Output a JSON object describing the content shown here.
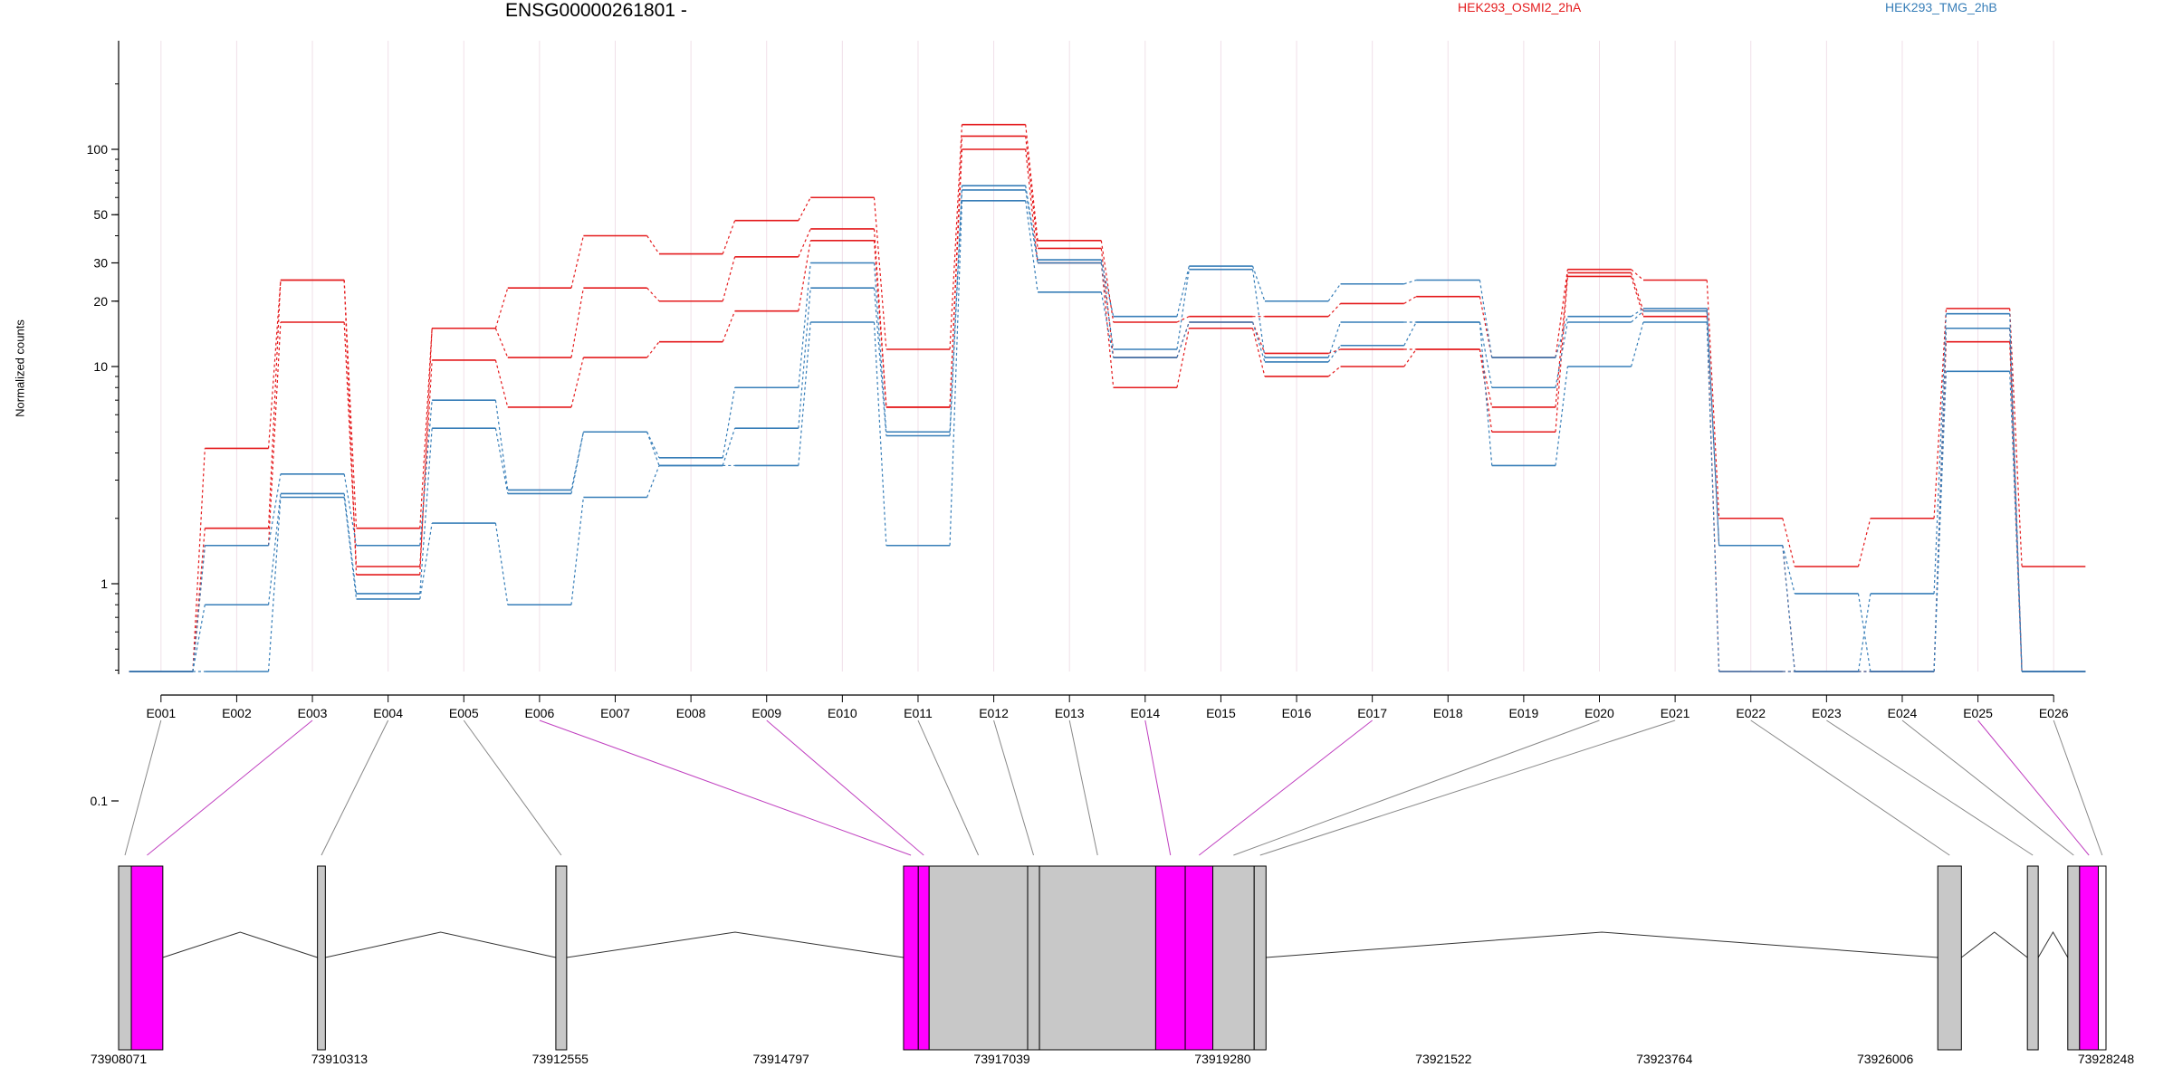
{
  "chart_data": {
    "type": "line",
    "title": "ENSG00000261801 -",
    "ylabel": "Normalized counts",
    "yscale": "log",
    "yticks": [
      0.1,
      1,
      10,
      20,
      30,
      50,
      100
    ],
    "ytick_labels": [
      "0.1",
      "1",
      "10",
      "20",
      "30",
      "50",
      "100"
    ],
    "categories": [
      "E001",
      "E002",
      "E003",
      "E004",
      "E005",
      "E006",
      "E007",
      "E008",
      "E009",
      "E010",
      "E011",
      "E012",
      "E013",
      "E014",
      "E015",
      "E016",
      "E017",
      "E018",
      "E019",
      "E020",
      "E021",
      "E022",
      "E023",
      "E024",
      "E025",
      "E026"
    ],
    "legend": [
      {
        "name": "HEK293_OSMI2_2hA",
        "color": "#e41a1c"
      },
      {
        "name": "HEK293_TMG_2hB",
        "color": "#377eb8"
      }
    ],
    "series": [
      {
        "group": "HEK293_OSMI2_2hA",
        "color": "#e41a1c",
        "values": [
          0.05,
          4.2,
          25,
          1.8,
          15,
          23,
          40,
          33,
          47,
          60,
          12,
          130,
          38,
          16,
          17,
          17,
          19.5,
          21,
          11,
          28,
          25,
          2,
          1.2,
          2,
          18.5,
          1.2
        ]
      },
      {
        "group": "HEK293_OSMI2_2hA",
        "color": "#e41a1c",
        "values": [
          0.05,
          1.8,
          25,
          1.1,
          15,
          11,
          23,
          20,
          32,
          43,
          6.5,
          115,
          35,
          11,
          16,
          11.5,
          12,
          12,
          6.5,
          27,
          18,
          1.5,
          0.05,
          0.05,
          15,
          0.05
        ]
      },
      {
        "group": "HEK293_OSMI2_2hA",
        "color": "#e41a1c",
        "values": [
          0.05,
          1.5,
          16,
          1.2,
          10.7,
          6.5,
          11,
          13,
          18,
          38,
          6.5,
          100,
          30,
          8,
          15,
          9,
          10,
          12,
          5,
          26,
          17,
          0.05,
          0.05,
          0.05,
          13,
          0.05
        ]
      },
      {
        "group": "HEK293_TMG_2hB",
        "color": "#377eb8",
        "values": [
          0.05,
          1.5,
          3.2,
          1.5,
          7,
          2.7,
          5,
          3.8,
          8,
          30,
          5,
          68,
          31,
          17,
          29,
          20,
          24,
          25,
          11,
          17,
          18.5,
          1.5,
          0.05,
          0.9,
          17.5,
          0.05
        ]
      },
      {
        "group": "HEK293_TMG_2hB",
        "color": "#377eb8",
        "values": [
          0.05,
          0.8,
          2.6,
          0.9,
          5.2,
          2.6,
          5,
          3.5,
          5.2,
          23,
          4.8,
          65,
          30,
          12,
          28,
          11,
          16,
          16,
          8,
          16,
          18,
          1.5,
          0.9,
          0.05,
          15,
          0.05
        ]
      },
      {
        "group": "HEK293_TMG_2hB",
        "color": "#377eb8",
        "values": [
          0.05,
          0.05,
          2.5,
          0.85,
          1.9,
          0.8,
          2.5,
          3.5,
          3.5,
          16,
          1.5,
          58,
          22,
          11,
          16,
          10.5,
          12.5,
          16,
          3.5,
          10,
          16,
          0.05,
          0.05,
          0.05,
          9.5,
          0.05
        ]
      }
    ],
    "gene_model": {
      "coordinate_labels": [
        "73908071",
        "73910313",
        "73912555",
        "73914797",
        "73917039",
        "73919280",
        "73921522",
        "73923764",
        "73926006",
        "73928248"
      ],
      "coord_min": 73908071,
      "coord_max": 73928248,
      "exon_colors": {
        "normal": "#c8c8c8",
        "highlight": "#ff00ff",
        "outline": "#000000"
      }
    },
    "grid": true,
    "legend_position": "top"
  }
}
